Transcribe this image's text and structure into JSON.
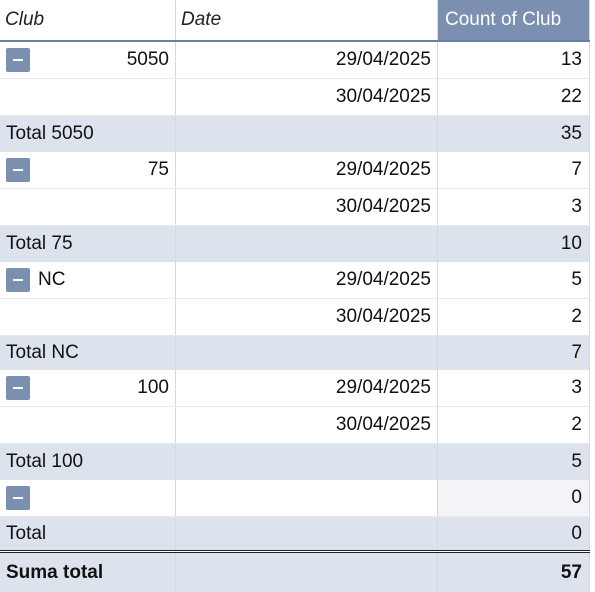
{
  "headers": {
    "club": "Club",
    "date": "Date",
    "count": "Count of Club"
  },
  "rows": [
    {
      "club": "5050",
      "date": "29/04/2025",
      "count": "13"
    },
    {
      "club": "",
      "date": "30/04/2025",
      "count": "22"
    },
    {
      "club": "Total 5050",
      "date": "",
      "count": "35"
    },
    {
      "club": "75",
      "date": "29/04/2025",
      "count": "7"
    },
    {
      "club": "",
      "date": "30/04/2025",
      "count": "3"
    },
    {
      "club": "Total 75",
      "date": "",
      "count": "10"
    },
    {
      "club": "NC",
      "date": "29/04/2025",
      "count": "5"
    },
    {
      "club": "",
      "date": "30/04/2025",
      "count": "2"
    },
    {
      "club": "Total NC",
      "date": "",
      "count": "7"
    },
    {
      "club": "100",
      "date": "29/04/2025",
      "count": "3"
    },
    {
      "club": "",
      "date": "30/04/2025",
      "count": "2"
    },
    {
      "club": "Total 100",
      "date": "",
      "count": "5"
    },
    {
      "club": "",
      "date": "",
      "count": "0"
    },
    {
      "club": "Total",
      "date": "",
      "count": "0"
    }
  ],
  "grand_total": {
    "label": "Suma total",
    "count": "57"
  },
  "icons": {
    "collapse": "minus-icon"
  },
  "colors": {
    "header_accent": "#7b8fb0",
    "band": "#dde3ec"
  }
}
